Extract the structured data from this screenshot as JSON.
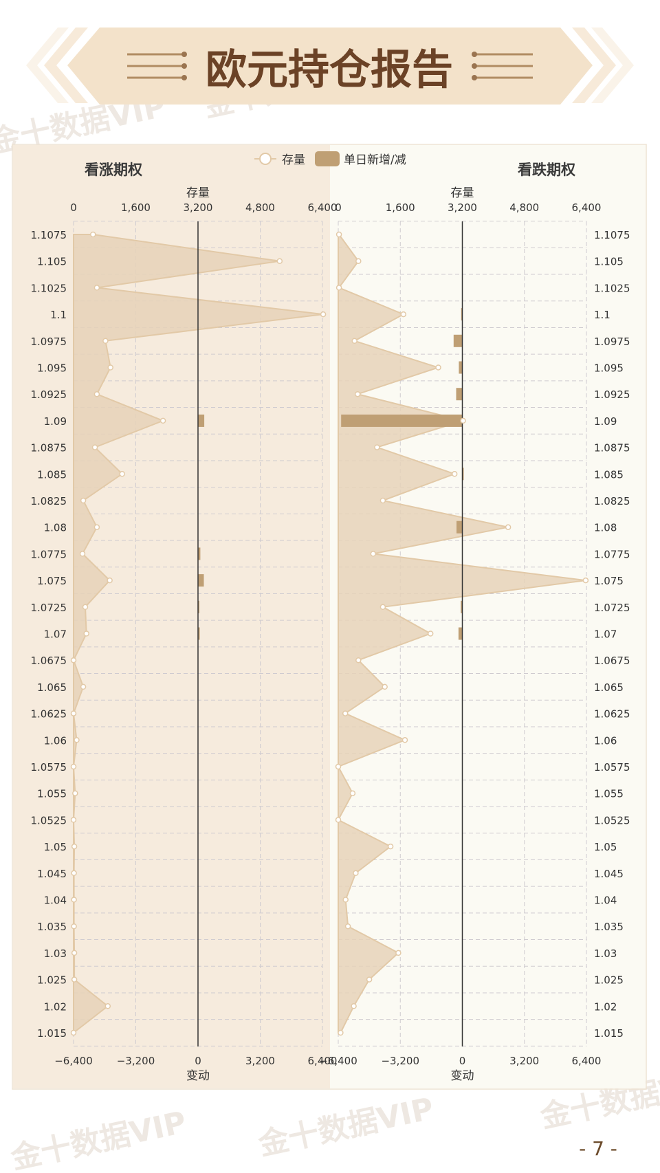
{
  "banner": {
    "title": "欧元持仓报告"
  },
  "legend": {
    "stock": "存量",
    "change": "单日新增/减"
  },
  "page_number": "- 7 -",
  "watermark": "金十数据VIP",
  "colors": {
    "left_bg": "#f6ebdd",
    "right_bg": "#fbfaf3",
    "area_fill": "#e6d2b8",
    "area_stroke": "#e2c9a7",
    "bar": "#bf9f74",
    "banner_fill": "#f3e2ca",
    "title_color": "#6b4226"
  },
  "chart_data": [
    {
      "type": "area",
      "panel": "看涨期权",
      "top_axis_title": "存量",
      "bottom_axis_title": "变动",
      "top_ticks": [
        "0",
        "1,600",
        "3,200",
        "4,800",
        "6,400"
      ],
      "bottom_ticks": [
        "−6,400",
        "−3,200",
        "0",
        "3,200",
        "6,400"
      ],
      "xlim_stock": [
        0,
        6400
      ],
      "xlim_change": [
        -6400,
        6400
      ],
      "grid": true,
      "categories": [
        "1.1075",
        "1.105",
        "1.1025",
        "1.1",
        "1.0975",
        "1.095",
        "1.0925",
        "1.09",
        "1.0875",
        "1.085",
        "1.0825",
        "1.08",
        "1.0775",
        "1.075",
        "1.0725",
        "1.07",
        "1.0675",
        "1.065",
        "1.0625",
        "1.06",
        "1.0575",
        "1.055",
        "1.0525",
        "1.05",
        "1.045",
        "1.04",
        "1.035",
        "1.03",
        "1.025",
        "1.02",
        "1.015"
      ],
      "series": [
        {
          "name": "存量",
          "values": [
            500,
            5300,
            600,
            6420,
            820,
            950,
            600,
            2300,
            550,
            1250,
            250,
            600,
            230,
            930,
            300,
            330,
            0,
            250,
            0,
            80,
            0,
            40,
            0,
            20,
            10,
            10,
            10,
            20,
            20,
            880,
            0
          ]
        },
        {
          "name": "单日新增/减",
          "values": [
            0,
            0,
            0,
            0,
            0,
            0,
            0,
            320,
            0,
            0,
            0,
            0,
            120,
            300,
            60,
            90,
            0,
            0,
            0,
            0,
            0,
            0,
            0,
            0,
            0,
            0,
            0,
            0,
            0,
            0,
            0
          ]
        }
      ]
    },
    {
      "type": "area",
      "panel": "看跌期权",
      "top_axis_title": "存量",
      "bottom_axis_title": "变动",
      "top_ticks": [
        "0",
        "1,600",
        "3,200",
        "4,800",
        "6,400"
      ],
      "bottom_ticks": [
        "−6,400",
        "−3,200",
        "0",
        "3,200",
        "6,400"
      ],
      "xlim_stock": [
        0,
        6400
      ],
      "xlim_change": [
        -6400,
        6400
      ],
      "grid": true,
      "categories": [
        "1.1075",
        "1.105",
        "1.1025",
        "1.1",
        "1.0975",
        "1.095",
        "1.0925",
        "1.09",
        "1.0875",
        "1.085",
        "1.0825",
        "1.08",
        "1.0775",
        "1.075",
        "1.0725",
        "1.07",
        "1.0675",
        "1.065",
        "1.0625",
        "1.06",
        "1.0575",
        "1.055",
        "1.0525",
        "1.05",
        "1.045",
        "1.04",
        "1.035",
        "1.03",
        "1.025",
        "1.02",
        "1.015"
      ],
      "series": [
        {
          "name": "存量",
          "values": [
            20,
            520,
            20,
            1680,
            420,
            2580,
            500,
            3220,
            1000,
            3000,
            1150,
            4380,
            900,
            6380,
            1150,
            2380,
            520,
            1200,
            180,
            1720,
            0,
            370,
            0,
            1350,
            450,
            190,
            250,
            1550,
            800,
            400,
            60
          ]
        },
        {
          "name": "单日新增/减",
          "values": [
            0,
            0,
            0,
            -60,
            -450,
            -180,
            -320,
            -6250,
            0,
            60,
            0,
            -300,
            0,
            0,
            -80,
            -200,
            0,
            0,
            0,
            0,
            0,
            0,
            0,
            0,
            0,
            0,
            0,
            0,
            0,
            0,
            0
          ]
        }
      ]
    }
  ]
}
